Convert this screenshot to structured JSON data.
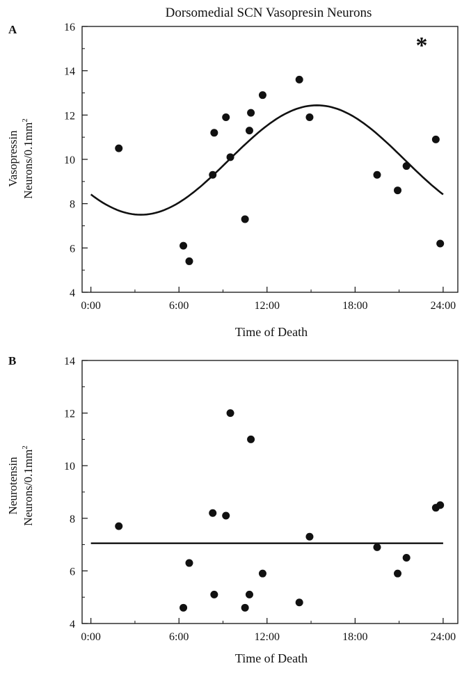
{
  "figure_title": "Dorsomedial SCN Vasopresin Neurons",
  "chart_data": [
    {
      "panel_label": "A",
      "type": "scatter",
      "title": "Dorsomedial SCN Vasopresin Neurons",
      "xlabel": "Time of Death",
      "ylabel_line1": "Vasopressin",
      "ylabel_line2": "Neurons/0.1mm",
      "ylabel_superscript": "2",
      "significance_marker": "*",
      "xlim": [
        -0.6,
        25.0
      ],
      "ylim": [
        4,
        16
      ],
      "x_tick_values": [
        0,
        6,
        12,
        18,
        24
      ],
      "x_ticks": [
        "0:00",
        "6:00",
        "12:00",
        "18:00",
        "24:00"
      ],
      "y_ticks": [
        4,
        6,
        8,
        10,
        12,
        14,
        16
      ],
      "grid": false,
      "points": [
        {
          "x": 1.9,
          "y": 10.5
        },
        {
          "x": 6.3,
          "y": 6.1
        },
        {
          "x": 6.7,
          "y": 5.4
        },
        {
          "x": 8.3,
          "y": 9.3
        },
        {
          "x": 8.4,
          "y": 11.2
        },
        {
          "x": 9.2,
          "y": 11.9
        },
        {
          "x": 9.5,
          "y": 10.1
        },
        {
          "x": 10.5,
          "y": 7.3
        },
        {
          "x": 10.8,
          "y": 11.3
        },
        {
          "x": 10.9,
          "y": 12.1
        },
        {
          "x": 11.7,
          "y": 12.9
        },
        {
          "x": 14.2,
          "y": 13.6
        },
        {
          "x": 14.9,
          "y": 11.9
        },
        {
          "x": 19.5,
          "y": 9.3
        },
        {
          "x": 20.9,
          "y": 8.6
        },
        {
          "x": 21.5,
          "y": 9.7
        },
        {
          "x": 23.5,
          "y": 10.9
        },
        {
          "x": 23.8,
          "y": 6.2
        }
      ],
      "fit": {
        "type": "cosinor",
        "mesor": 9.97,
        "amplitude": 2.47,
        "acrophase_hours": 15.4,
        "period_hours": 24,
        "x_range": [
          0,
          24
        ]
      }
    },
    {
      "panel_label": "B",
      "type": "scatter",
      "xlabel": "Time of Death",
      "ylabel_line1": "Neurotensin",
      "ylabel_line2": "Neurons/0.1mm",
      "ylabel_superscript": "2",
      "xlim": [
        -0.6,
        25.0
      ],
      "ylim": [
        4,
        14
      ],
      "x_tick_values": [
        0,
        6,
        12,
        18,
        24
      ],
      "x_ticks": [
        "0:00",
        "6:00",
        "12:00",
        "18:00",
        "24:00"
      ],
      "y_ticks": [
        4,
        6,
        8,
        10,
        12,
        14
      ],
      "grid": false,
      "points": [
        {
          "x": 1.9,
          "y": 7.7
        },
        {
          "x": 6.3,
          "y": 4.6
        },
        {
          "x": 6.7,
          "y": 6.3
        },
        {
          "x": 8.3,
          "y": 8.2
        },
        {
          "x": 8.4,
          "y": 5.1
        },
        {
          "x": 9.2,
          "y": 8.1
        },
        {
          "x": 9.5,
          "y": 12.0
        },
        {
          "x": 10.5,
          "y": 4.6
        },
        {
          "x": 10.8,
          "y": 5.1
        },
        {
          "x": 10.9,
          "y": 11.0
        },
        {
          "x": 11.7,
          "y": 5.9
        },
        {
          "x": 14.2,
          "y": 4.8
        },
        {
          "x": 14.9,
          "y": 7.3
        },
        {
          "x": 19.5,
          "y": 6.9
        },
        {
          "x": 20.9,
          "y": 5.9
        },
        {
          "x": 21.5,
          "y": 6.5
        },
        {
          "x": 23.5,
          "y": 8.4
        },
        {
          "x": 23.8,
          "y": 8.5
        }
      ],
      "fit": {
        "type": "constant",
        "value": 7.05,
        "x_range": [
          0,
          24
        ]
      }
    }
  ]
}
